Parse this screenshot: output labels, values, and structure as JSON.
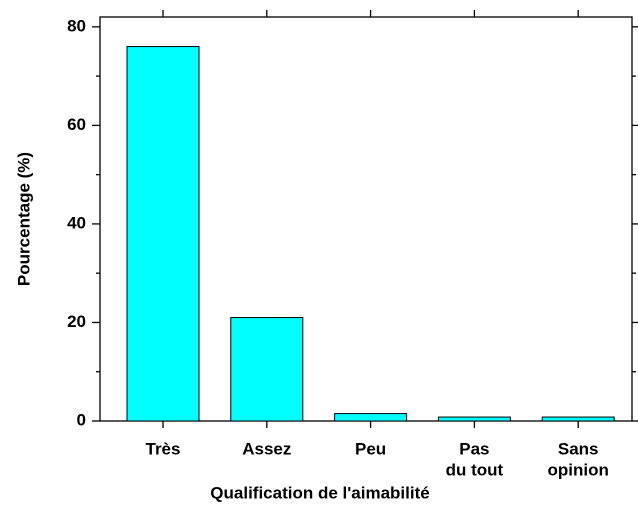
{
  "chart_data": {
    "type": "bar",
    "x_label": "Qualification de l'aimabilité",
    "y_label": "Pourcentage (%)",
    "categories": [
      [
        "Très"
      ],
      [
        "Assez"
      ],
      [
        "Peu"
      ],
      [
        "Pas",
        "du tout"
      ],
      [
        "Sans",
        "opinion"
      ]
    ],
    "values": [
      76,
      21,
      1.5,
      0.8,
      0.8
    ],
    "color": "#00ffff",
    "ylim": [
      0,
      82
    ],
    "yticks": [
      0,
      20,
      40,
      60,
      80
    ],
    "yminor_ticks": [
      10,
      30,
      50,
      70
    ]
  }
}
